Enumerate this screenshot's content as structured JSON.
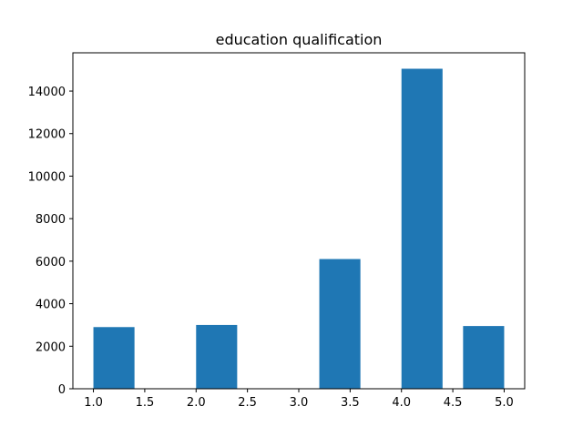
{
  "chart_data": {
    "type": "bar",
    "title": "education qualification",
    "xlabel": "",
    "ylabel": "",
    "xlim": [
      0.8,
      5.2
    ],
    "ylim": [
      0,
      15800
    ],
    "xticks": [
      1.0,
      1.5,
      2.0,
      2.5,
      3.0,
      3.5,
      4.0,
      4.5,
      5.0
    ],
    "xtick_labels": [
      "1.0",
      "1.5",
      "2.0",
      "2.5",
      "3.0",
      "3.5",
      "4.0",
      "4.5",
      "5.0"
    ],
    "yticks": [
      0,
      2000,
      4000,
      6000,
      8000,
      10000,
      12000,
      14000
    ],
    "ytick_labels": [
      "0",
      "2000",
      "4000",
      "6000",
      "8000",
      "10000",
      "12000",
      "14000"
    ],
    "bins": [
      {
        "x0": 1.0,
        "x1": 1.4,
        "value": 2900
      },
      {
        "x0": 2.0,
        "x1": 2.4,
        "value": 3000
      },
      {
        "x0": 3.2,
        "x1": 3.6,
        "value": 6100
      },
      {
        "x0": 4.0,
        "x1": 4.4,
        "value": 15050
      },
      {
        "x0": 4.6,
        "x1": 5.0,
        "value": 2950
      }
    ],
    "bar_color": "#1f77b4",
    "grid": false,
    "legend": "none"
  }
}
